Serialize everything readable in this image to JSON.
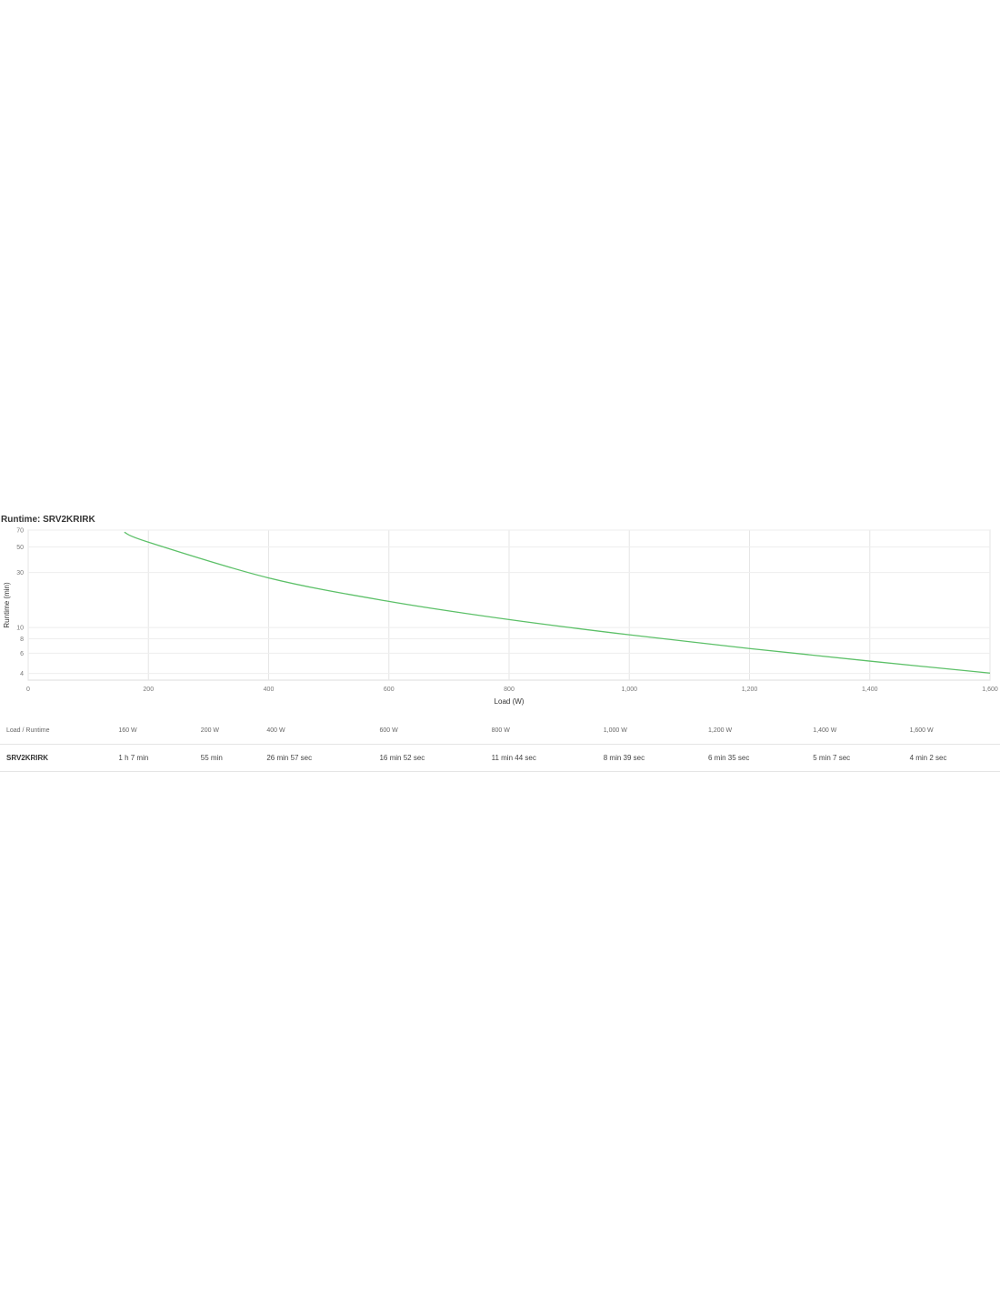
{
  "chart_data": {
    "type": "line",
    "title": "Runtime: SRV2KRIRK",
    "xlabel": "Load (W)",
    "ylabel": "Runtime (min)",
    "xlim": [
      0,
      1600
    ],
    "ylim": [
      3.5,
      70
    ],
    "yscale": "log",
    "grid": true,
    "xticks": [
      0,
      200,
      400,
      600,
      800,
      1000,
      1200,
      1400,
      1600
    ],
    "xtick_labels": [
      "0",
      "200",
      "400",
      "600",
      "800",
      "1,000",
      "1,200",
      "1,400",
      "1,600"
    ],
    "yticks": [
      4,
      6,
      8,
      10,
      30,
      50,
      70
    ],
    "ytick_labels": [
      "4",
      "6",
      "8",
      "10",
      "30",
      "50",
      "70"
    ],
    "color": "#5cc068",
    "series": [
      {
        "x": [
          160,
          200,
          400,
          600,
          800,
          1000,
          1200,
          1400,
          1600
        ],
        "y": [
          67,
          55,
          26.95,
          16.87,
          11.73,
          8.65,
          6.58,
          5.12,
          4.03
        ]
      }
    ]
  },
  "table": {
    "header_label": "Load / Runtime",
    "columns": [
      "160 W",
      "200 W",
      "400 W",
      "600 W",
      "800 W",
      "1,000 W",
      "1,200 W",
      "1,400 W",
      "1,600 W"
    ],
    "rows": [
      {
        "model": "SRV2KRIRK",
        "values": [
          "1 h 7 min",
          "55 min",
          "26 min 57 sec",
          "16 min 52 sec",
          "11 min 44 sec",
          "8 min 39 sec",
          "6 min 35 sec",
          "5 min 7 sec",
          "4 min 2 sec"
        ]
      }
    ]
  }
}
